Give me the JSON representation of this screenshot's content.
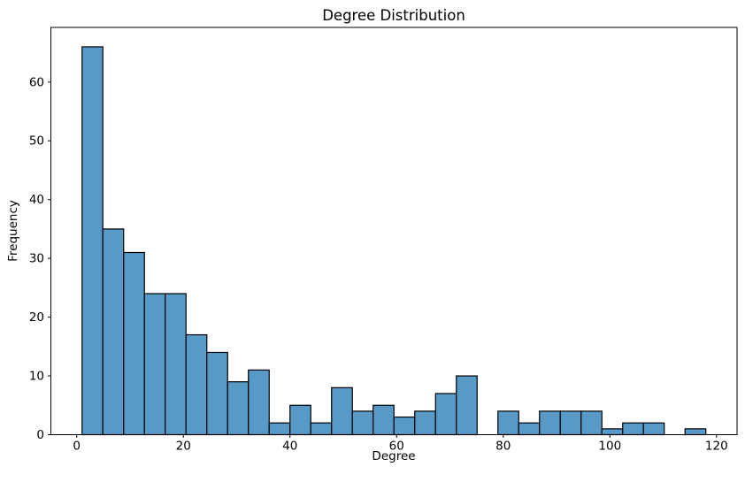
{
  "figure": {
    "title": "Degree Distribution",
    "xlabel": "Degree",
    "ylabel": "Frequency"
  },
  "chart_data": {
    "type": "bar",
    "subtype": "histogram",
    "title": "Degree Distribution",
    "xlabel": "Degree",
    "ylabel": "Frequency",
    "bin_edges": [
      1.0,
      4.9,
      8.8,
      12.7,
      16.6,
      20.5,
      24.4,
      28.3,
      32.2,
      36.1,
      40.0,
      43.9,
      47.8,
      51.7,
      55.6,
      59.5,
      63.4,
      67.3,
      71.2,
      75.1,
      79.0,
      82.9,
      86.8,
      90.7,
      94.6,
      98.5,
      102.4,
      106.3,
      110.2,
      114.1,
      118.0
    ],
    "counts": [
      66,
      35,
      31,
      24,
      24,
      17,
      14,
      9,
      11,
      2,
      5,
      2,
      8,
      4,
      5,
      3,
      4,
      7,
      10,
      0,
      4,
      2,
      4,
      4,
      4,
      1,
      2,
      2,
      0,
      1
    ],
    "xticks": [
      0,
      20,
      40,
      60,
      80,
      100,
      120
    ],
    "yticks": [
      0,
      10,
      20,
      30,
      40,
      50,
      60
    ],
    "xlim": [
      -4.85,
      123.85
    ],
    "ylim": [
      0,
      69.3
    ],
    "grid": false,
    "bar_color": "#5799c7",
    "bar_edge_color": "#000000",
    "spine_color": "#000000",
    "tick_label_color": "#000000"
  }
}
